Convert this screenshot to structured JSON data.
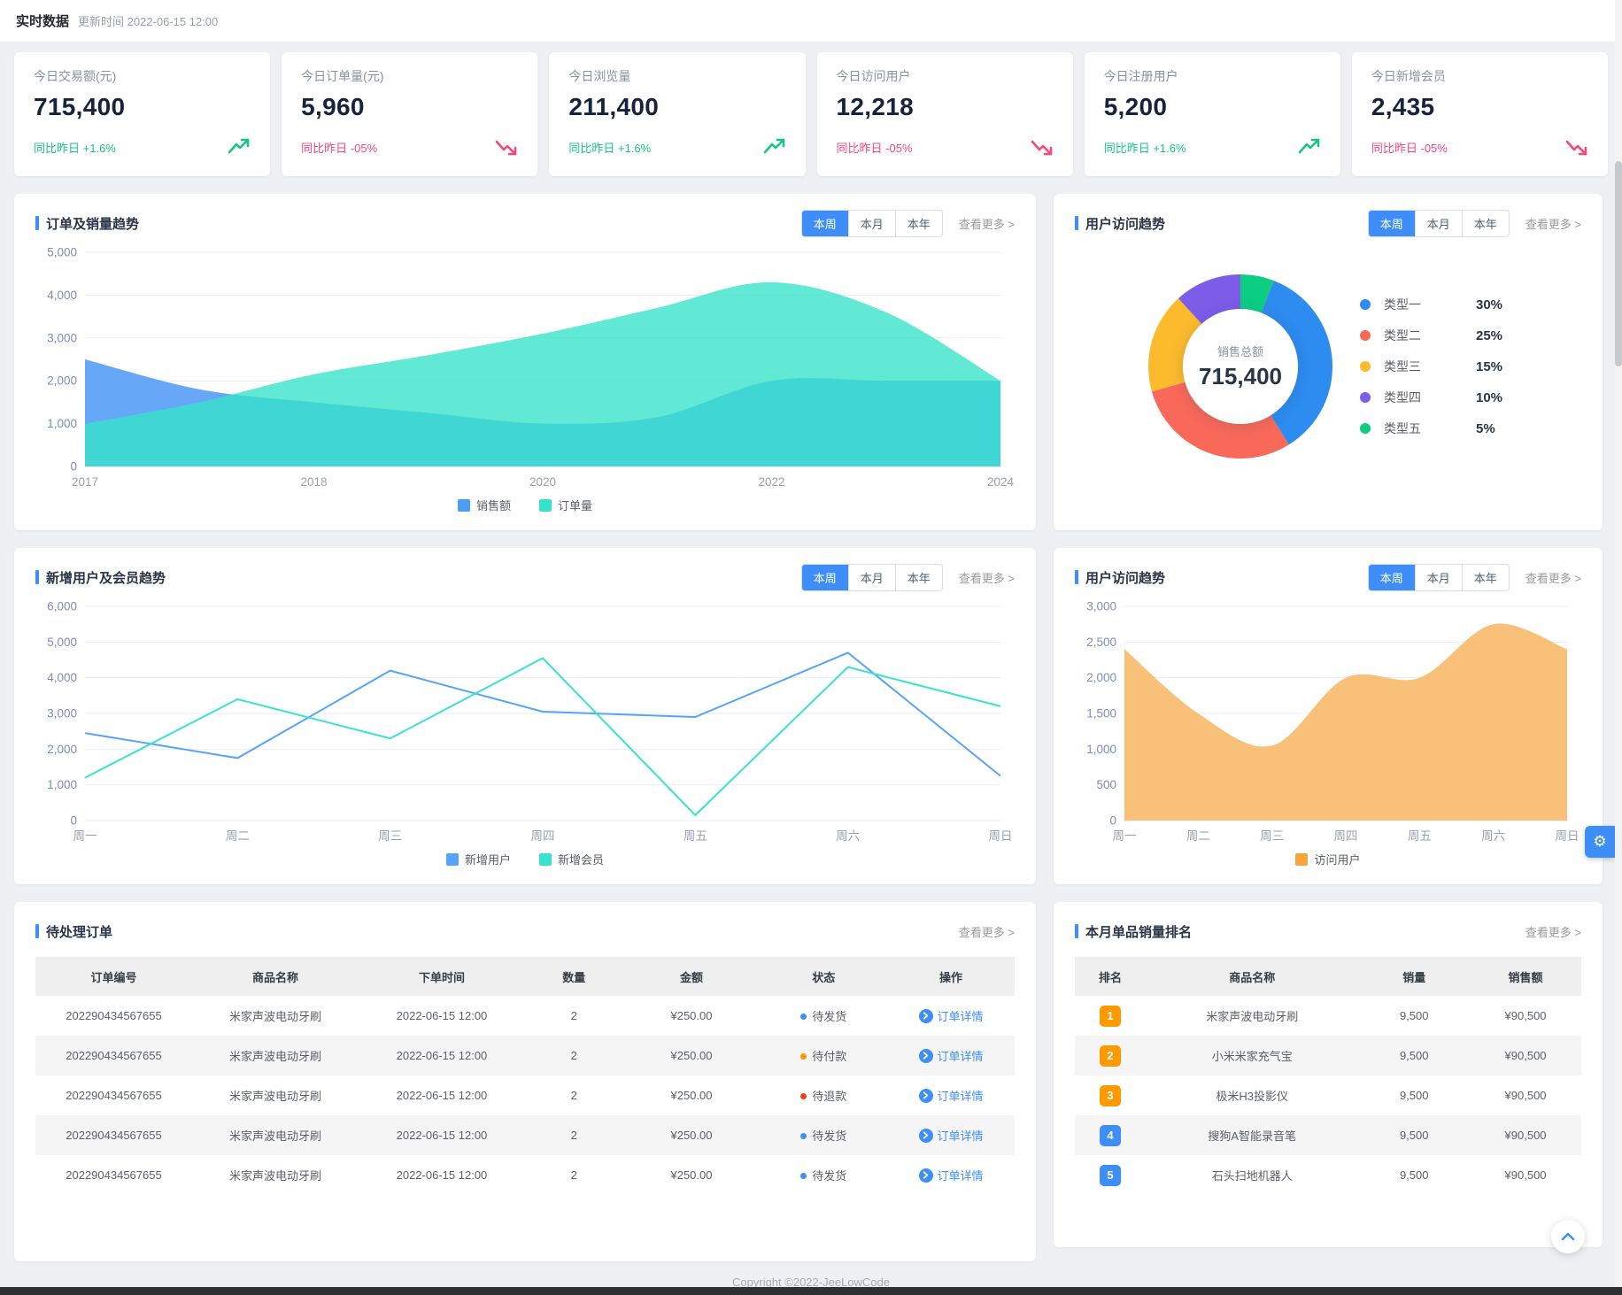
{
  "header": {
    "title": "实时数据",
    "updated": "更新时间 2022-06-15 12:00"
  },
  "colors": {
    "accent": "#3e8ef7",
    "up": "#16c584",
    "down": "#f8477e",
    "grid": "#e9edf3",
    "axis_label": "#7f8cbb"
  },
  "controls": {
    "tabs": [
      "本周",
      "本月",
      "本年"
    ],
    "active_tab": "本周",
    "view_more": "查看更多 >"
  },
  "stats": [
    {
      "label": "今日交易额(元)",
      "value": "715,400",
      "trend_label": "同比昨日",
      "trend_value": "+1.6%",
      "dir": "up"
    },
    {
      "label": "今日订单量(元)",
      "value": "5,960",
      "trend_label": "同比昨日",
      "trend_value": "-05%",
      "dir": "down"
    },
    {
      "label": "今日浏览量",
      "value": "211,400",
      "trend_label": "同比昨日",
      "trend_value": "+1.6%",
      "dir": "up"
    },
    {
      "label": "今日访问用户",
      "value": "12,218",
      "trend_label": "同比昨日",
      "trend_value": "-05%",
      "dir": "down"
    },
    {
      "label": "今日注册用户",
      "value": "5,200",
      "trend_label": "同比昨日",
      "trend_value": "+1.6%",
      "dir": "up"
    },
    {
      "label": "今日新增会员",
      "value": "2,435",
      "trend_label": "同比昨日",
      "trend_value": "-05%",
      "dir": "down"
    }
  ],
  "chart_data": [
    {
      "type": "area",
      "title": "订单及销量趋势",
      "smooth": true,
      "area": true,
      "ylim": [
        0,
        5000
      ],
      "ytick": 1000,
      "grid": true,
      "legend_position": "bottom",
      "x_ticks": [
        {
          "pos": 0,
          "label": "2017"
        },
        {
          "pos": 0.25,
          "label": "2018"
        },
        {
          "pos": 0.5,
          "label": "2020"
        },
        {
          "pos": 0.75,
          "label": "2022"
        },
        {
          "pos": 1,
          "label": "2024"
        }
      ],
      "series": [
        {
          "name": "销售额",
          "color": "#4a9ef8",
          "fill": "#5ea2f8",
          "fill_opacity": 0.95,
          "values": [
            2500,
            1800,
            1500,
            1250,
            1000,
            1150,
            2000,
            2000,
            2000
          ]
        },
        {
          "name": "订单量",
          "color": "#35e3c9",
          "fill": "#35e3c9",
          "fill_opacity": 0.78,
          "values": [
            1000,
            1500,
            2150,
            2600,
            3100,
            3700,
            4300,
            3600,
            2000
          ]
        }
      ]
    },
    {
      "type": "donut",
      "title": "用户访问趋势",
      "center_label": "销售总额",
      "center_value": "715,400",
      "slices": [
        {
          "name": "类型一",
          "pct": "30%",
          "value": 30,
          "color": "#2d8cf0"
        },
        {
          "name": "类型二",
          "pct": "25%",
          "value": 25,
          "color": "#f9695a"
        },
        {
          "name": "类型三",
          "pct": "15%",
          "value": 15,
          "color": "#fcba2d"
        },
        {
          "name": "类型四",
          "pct": "10%",
          "value": 10,
          "color": "#7d5ce8"
        },
        {
          "name": "类型五",
          "pct": "5%",
          "value": 5,
          "color": "#0bce83"
        }
      ],
      "draw_order": [
        4,
        0,
        1,
        2,
        3
      ]
    },
    {
      "type": "line",
      "title": "新增用户及会员趋势",
      "smooth": false,
      "area": false,
      "ylim": [
        0,
        6000
      ],
      "ytick": 1000,
      "grid": true,
      "legend_position": "bottom",
      "categories": [
        "周一",
        "周二",
        "周三",
        "周四",
        "周五",
        "周六",
        "周日"
      ],
      "series": [
        {
          "name": "新增用户",
          "color": "#56a3f8",
          "values": [
            2450,
            1750,
            4200,
            3050,
            2900,
            4700,
            1250
          ]
        },
        {
          "name": "新增会员",
          "color": "#38e2ce",
          "values": [
            1200,
            3400,
            2300,
            4550,
            150,
            4300,
            3200
          ]
        }
      ]
    },
    {
      "type": "area",
      "title": "用户访问趋势",
      "smooth": true,
      "area": true,
      "ylim": [
        0,
        3000
      ],
      "ytick": 500,
      "grid": true,
      "legend_position": "bottom",
      "categories": [
        "周一",
        "周二",
        "周三",
        "周四",
        "周五",
        "周六",
        "周日"
      ],
      "series": [
        {
          "name": "访问用户",
          "color": "#faa43c",
          "fill": "#f8bd72",
          "fill_opacity": 0.95,
          "values": [
            2400,
            1500,
            1050,
            2000,
            2000,
            2750,
            2400
          ]
        }
      ]
    }
  ],
  "orders": {
    "title": "待处理订单",
    "view_more": "查看更多 >",
    "columns": [
      "订单编号",
      "商品名称",
      "下单时间",
      "数量",
      "金额",
      "状态",
      "操作"
    ],
    "action_label": "订单详情",
    "rows": [
      {
        "order_no": "202290434567655",
        "product": "米家声波电动牙刷",
        "time": "2022-06-15 12:00",
        "qty": "2",
        "amount": "¥250.00",
        "status": "待发货",
        "status_variant": "blue"
      },
      {
        "order_no": "202290434567655",
        "product": "米家声波电动牙刷",
        "time": "2022-06-15 12:00",
        "qty": "2",
        "amount": "¥250.00",
        "status": "待付款",
        "status_variant": "orange"
      },
      {
        "order_no": "202290434567655",
        "product": "米家声波电动牙刷",
        "time": "2022-06-15 12:00",
        "qty": "2",
        "amount": "¥250.00",
        "status": "待退款",
        "status_variant": "red"
      },
      {
        "order_no": "202290434567655",
        "product": "米家声波电动牙刷",
        "time": "2022-06-15 12:00",
        "qty": "2",
        "amount": "¥250.00",
        "status": "待发货",
        "status_variant": "blue"
      },
      {
        "order_no": "202290434567655",
        "product": "米家声波电动牙刷",
        "time": "2022-06-15 12:00",
        "qty": "2",
        "amount": "¥250.00",
        "status": "待发货",
        "status_variant": "blue"
      }
    ]
  },
  "ranking": {
    "title": "本月单品销量排名",
    "view_more": "查看更多 >",
    "columns": [
      "排名",
      "商品名称",
      "销量",
      "销售额"
    ],
    "rows": [
      {
        "rank": "1",
        "variant": "orange",
        "product": "米家声波电动牙刷",
        "qty": "9,500",
        "amount": "¥90,500"
      },
      {
        "rank": "2",
        "variant": "orange",
        "product": "小米米家充气宝",
        "qty": "9,500",
        "amount": "¥90,500"
      },
      {
        "rank": "3",
        "variant": "orange",
        "product": "极米H3投影仪",
        "qty": "9,500",
        "amount": "¥90,500"
      },
      {
        "rank": "4",
        "variant": "blue",
        "product": "搜狗A智能录音笔",
        "qty": "9,500",
        "amount": "¥90,500"
      },
      {
        "rank": "5",
        "variant": "blue",
        "product": "石头扫地机器人",
        "qty": "9,500",
        "amount": "¥90,500"
      }
    ]
  },
  "footer": {
    "copyright": "Copyright ©2022-JeeLowCode"
  }
}
